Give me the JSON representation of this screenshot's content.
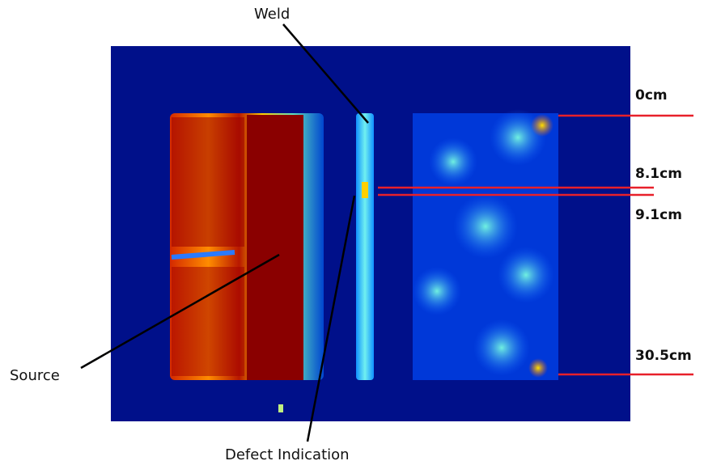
{
  "labels": {
    "weld": "Weld",
    "source": "Source",
    "defect": "Defect Indication"
  },
  "markers": [
    "0cm",
    "8.1cm",
    "9.1cm",
    "30.5cm"
  ]
}
